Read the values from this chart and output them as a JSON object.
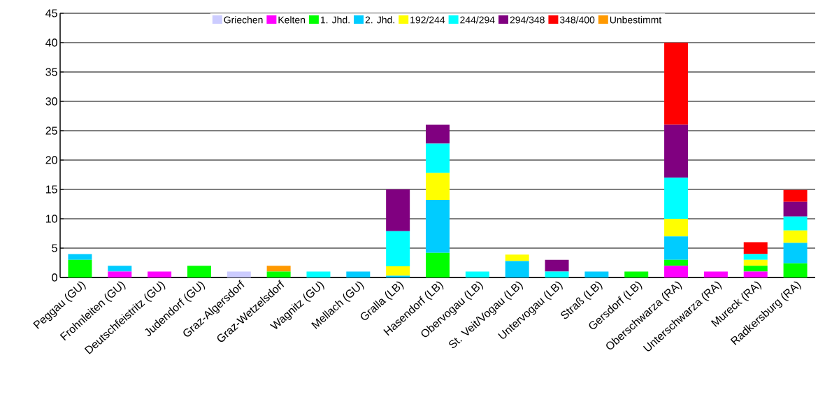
{
  "chart_data": {
    "type": "bar",
    "stacked": true,
    "categories": [
      "Peggau (GU)",
      "Frohnleiten (GU)",
      "Deutschfeistritz (GU)",
      "Judendorf (GU)",
      "Graz-Algersdorf",
      "Graz-Wetzelsdorf",
      "Wagnitz (GU)",
      "Mellach (GU)",
      "Gralla (LB)",
      "Hasendorf (LB)",
      "Obervogau (LB)",
      "St. Veit/Vogau (LB)",
      "Untervogau (LB)",
      "Straß (LB)",
      "Gersdorf (LB)",
      "Oberschwarza (RA)",
      "Unterschwarza (RA)",
      "Mureck (RA)",
      "Radkersburg (RA)"
    ],
    "series": [
      {
        "name": "Griechen",
        "color": "#ccccff",
        "values": [
          null,
          null,
          null,
          null,
          1,
          null,
          null,
          null,
          null,
          null,
          null,
          null,
          null,
          null,
          null,
          null,
          null,
          null,
          null
        ]
      },
      {
        "name": "Kelten",
        "color": "#ff00ff",
        "values": [
          null,
          1,
          1,
          null,
          null,
          null,
          null,
          null,
          null,
          null,
          null,
          null,
          null,
          null,
          null,
          2,
          1,
          1,
          null
        ]
      },
      {
        "name": "1. Jhd.",
        "color": "#00ff00",
        "values": [
          3,
          null,
          null,
          2,
          null,
          1,
          null,
          null,
          null,
          4.2,
          null,
          null,
          null,
          null,
          1,
          1,
          null,
          1,
          2.4
        ]
      },
      {
        "name": "2. Jhd.",
        "color": "#00ccff",
        "values": [
          1,
          1,
          null,
          null,
          null,
          null,
          null,
          1,
          0.3,
          9,
          null,
          2.8,
          null,
          1,
          null,
          4,
          null,
          null,
          3.5
        ]
      },
      {
        "name": "192/244",
        "color": "#ffff00",
        "values": [
          null,
          null,
          null,
          null,
          null,
          null,
          null,
          null,
          1.6,
          4.6,
          null,
          1.1,
          null,
          null,
          null,
          3,
          null,
          1,
          2.1
        ]
      },
      {
        "name": "244/294",
        "color": "#00ffff",
        "values": [
          null,
          null,
          null,
          null,
          null,
          null,
          1,
          null,
          6,
          5,
          1,
          null,
          1,
          null,
          null,
          7,
          null,
          1,
          2.4
        ]
      },
      {
        "name": "294/348",
        "color": "#800080",
        "values": [
          null,
          null,
          null,
          null,
          null,
          null,
          null,
          null,
          7.1,
          3.2,
          null,
          null,
          2,
          null,
          null,
          9,
          null,
          null,
          2.5
        ]
      },
      {
        "name": "348/400",
        "color": "#ff0000",
        "values": [
          null,
          null,
          null,
          null,
          null,
          null,
          null,
          null,
          null,
          null,
          null,
          null,
          null,
          null,
          null,
          14,
          null,
          2,
          2
        ]
      },
      {
        "name": "Unbestimmt",
        "color": "#ff9900",
        "values": [
          null,
          null,
          null,
          null,
          null,
          1,
          null,
          null,
          null,
          null,
          null,
          null,
          null,
          null,
          null,
          null,
          null,
          null,
          null
        ]
      }
    ],
    "ylim": [
      0,
      45
    ],
    "yticks": [
      0,
      5,
      10,
      15,
      20,
      25,
      30,
      35,
      40,
      45
    ],
    "grid": "y",
    "legend": "top"
  }
}
